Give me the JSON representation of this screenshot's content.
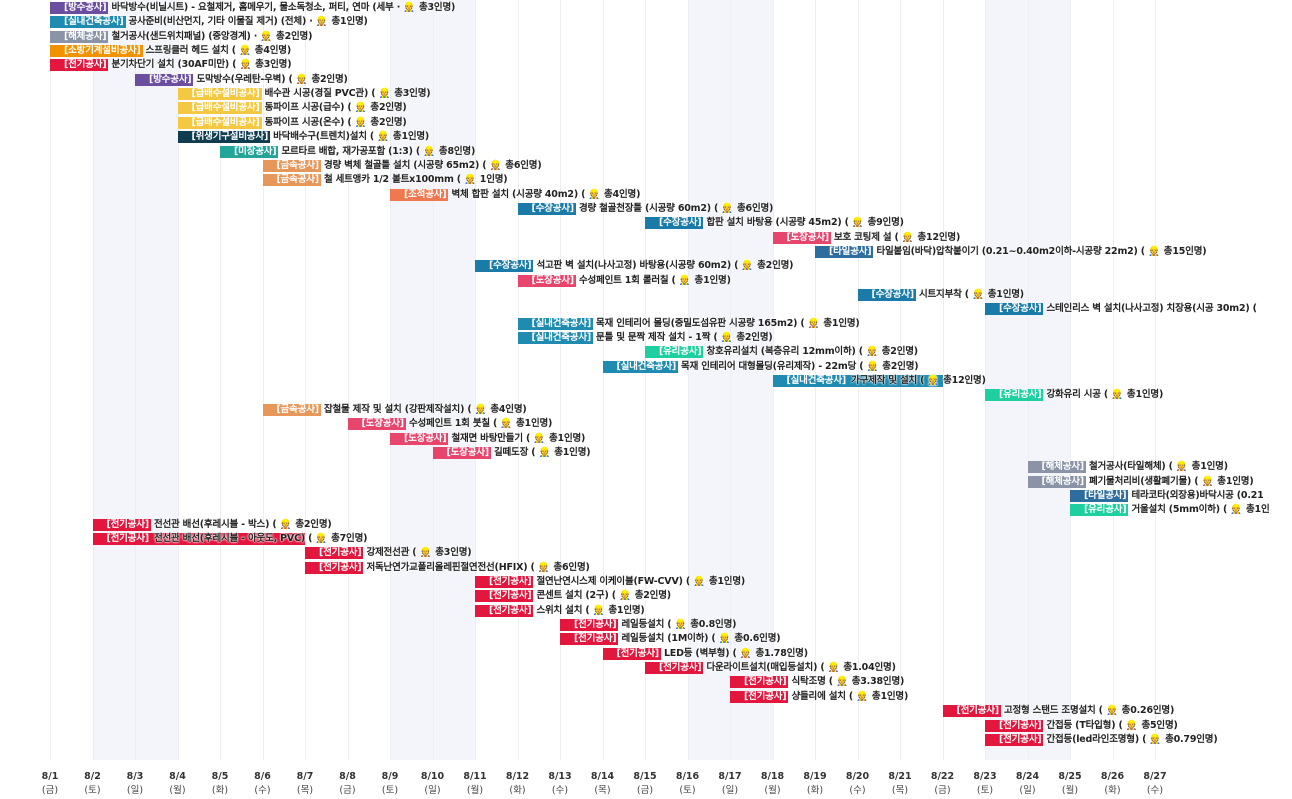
{
  "chart_data": {
    "type": "gantt",
    "x_axis": {
      "dates": [
        "8/1",
        "8/2",
        "8/3",
        "8/4",
        "8/5",
        "8/6",
        "8/7",
        "8/8",
        "8/9",
        "8/10",
        "8/11",
        "8/12",
        "8/13",
        "8/14",
        "8/15",
        "8/16",
        "8/17",
        "8/18",
        "8/19",
        "8/20",
        "8/21",
        "8/22",
        "8/23",
        "8/24",
        "8/25",
        "8/26",
        "8/27"
      ],
      "weekdays": [
        "(금)",
        "(토)",
        "(일)",
        "(월)",
        "(화)",
        "(수)",
        "(목)",
        "(금)",
        "(토)",
        "(일)",
        "(월)",
        "(화)",
        "(수)",
        "(목)",
        "(금)",
        "(토)",
        "(일)",
        "(월)",
        "(화)",
        "(수)",
        "(목)",
        "(금)",
        "(토)",
        "(일)",
        "(월)",
        "(화)",
        "(수)"
      ],
      "weekend_days": [
        1,
        2,
        8,
        9,
        15,
        16,
        22,
        23
      ]
    },
    "worker_icon": "worker-icon",
    "colors": {
      "방수공사": "#6b4ea0",
      "실내건축공사": "#1f8bb0",
      "해체공사": "#8a94a6",
      "소방기계설비공사": "#f39200",
      "전기공사": "#e3173e",
      "급배수설비공사": "#f5c842",
      "위생기구설비공사": "#0f3d4f",
      "미장공사": "#23a59a",
      "금속공사": "#e8975a",
      "조적공사": "#f07850",
      "수장공사": "#1b7ba8",
      "도장공사": "#e8456d",
      "타일공사": "#2e6e9e",
      "유리공사": "#1ecfa0"
    },
    "tasks": [
      {
        "cat": "방수공사",
        "desc": "바닥방수(비닐시트) - 요철제거, 홈메우기, 물소독청소, 퍼티, 연마 (세부 ·",
        "workers": "총3인명)",
        "start": 0,
        "dur": 0.3
      },
      {
        "cat": "실내건축공사",
        "desc": "공사준비(비산먼지, 기타 이물질 제거) (전체) ·",
        "workers": "총1인명)",
        "start": 0,
        "dur": 0.3
      },
      {
        "cat": "해체공사",
        "desc": "철거공사(샌드위치패널) (중앙경계) ·",
        "workers": "총2인명)",
        "start": 0,
        "dur": 0.3
      },
      {
        "cat": "소방기계설비공사",
        "desc": "스프링클러 헤드 설치 (",
        "workers": "총4인명)",
        "start": 0,
        "dur": 0.3
      },
      {
        "cat": "전기공사",
        "desc": "분기차단기 설치 (30AF미만) (",
        "workers": "총3인명)",
        "start": 0,
        "dur": 0.3
      },
      {
        "cat": "방수공사",
        "desc": "도막방수(우레탄-우벽) (",
        "workers": "총2인명)",
        "start": 2,
        "dur": 0.3
      },
      {
        "cat": "급배수설비공사",
        "desc": "배수관 시공(경질 PVC관) (",
        "workers": "총3인명)",
        "start": 3,
        "dur": 0.3
      },
      {
        "cat": "급배수설비공사",
        "desc": "동파이프 시공(급수) (",
        "workers": "총2인명)",
        "start": 3,
        "dur": 0.3
      },
      {
        "cat": "급배수설비공사",
        "desc": "동파이프 시공(온수) (",
        "workers": "총2인명)",
        "start": 3,
        "dur": 0.3
      },
      {
        "cat": "위생기구설비공사",
        "desc": "바닥배수구(트렌치)설치 (",
        "workers": "총1인명)",
        "start": 3,
        "dur": 0.3
      },
      {
        "cat": "미장공사",
        "desc": "모르타르 배합, 재가공포함 (1:3) (",
        "workers": "총8인명)",
        "start": 4,
        "dur": 0.3
      },
      {
        "cat": "금속공사",
        "desc": "경량 벽체 철골틀 설치 (시공량 65m2) (",
        "workers": "총6인명)",
        "start": 5,
        "dur": 0.3
      },
      {
        "cat": "금속공사",
        "desc": "철 세트앵카 1/2 볼트x100mm (",
        "workers": "1인명)",
        "start": 5,
        "dur": 0.3
      },
      {
        "cat": "조적공사",
        "desc": "벽체 합판 설치 (시공량 40m2) (",
        "workers": "총4인명)",
        "start": 8,
        "dur": 1
      },
      {
        "cat": "수장공사",
        "desc": "경량 철골천장틀 (시공량 60m2) (",
        "workers": "총6인명)",
        "start": 11,
        "dur": 0.3
      },
      {
        "cat": "수장공사",
        "desc": "합판 설치 바탕용 (시공량 45m2) (",
        "workers": "총9인명)",
        "start": 14,
        "dur": 0.3
      },
      {
        "cat": "도장공사",
        "desc": "보호 코팅제 설 (",
        "workers": "총12인명)",
        "start": 17,
        "dur": 0.3
      },
      {
        "cat": "타일공사",
        "desc": "타일붙임(바닥)압착붙이기 (0.21~0.40m2이하-시공량 22m2) (",
        "workers": "총15인명)",
        "start": 18,
        "dur": 0.3
      },
      {
        "cat": "수장공사",
        "desc": "석고판 벽 설치(나사고정) 바탕용(시공량 60m2) (",
        "workers": "총2인명)",
        "start": 10,
        "dur": 0.3
      },
      {
        "cat": "도장공사",
        "desc": "수성페인트 1회 롤러칠 (",
        "workers": "총1인명)",
        "start": 11,
        "dur": 0.3
      },
      {
        "cat": "수장공사",
        "desc": "시트지부착 (",
        "workers": "총1인명)",
        "start": 19,
        "dur": 0.3
      },
      {
        "cat": "수장공사",
        "desc": "스테인리스 벽 설치(나사고정) 치장용(시공 30m2) (",
        "workers": "",
        "start": 22,
        "dur": 0.3
      },
      {
        "cat": "실내건축공사",
        "desc": "목재 인테리어 몰딩(중밀도섬유판 시공량 165m2) (",
        "workers": "총1인명)",
        "start": 11,
        "dur": 0.3
      },
      {
        "cat": "실내건축공사",
        "desc": "문틀 및 문짝 제작 설치 - 1짝 (",
        "workers": "총2인명)",
        "start": 11,
        "dur": 0.3
      },
      {
        "cat": "유리공사",
        "desc": "창호유리설치 (복층유리 12mm이하) (",
        "workers": "총2인명)",
        "start": 14,
        "dur": 0.3
      },
      {
        "cat": "실내건축공사",
        "desc": "목재 인테리어 대형몰딩(유리제작) - 22m당 (",
        "workers": "총2인명)",
        "start": 13,
        "dur": 0.3
      },
      {
        "cat": "실내건축공사",
        "desc": "가구제작 및 설치 (",
        "workers": "총12인명)",
        "start": 17,
        "dur": 4
      },
      {
        "cat": "유리공사",
        "desc": "강화유리 시공 (",
        "workers": "총1인명)",
        "start": 22,
        "dur": 0.3
      },
      {
        "cat": "금속공사",
        "desc": "잡철물 제작 및 설치 (강판제작설치) (",
        "workers": "총4인명)",
        "start": 5,
        "dur": 0.3
      },
      {
        "cat": "도장공사",
        "desc": "수성페인트 1회 붓칠 (",
        "workers": "총1인명)",
        "start": 7,
        "dur": 0.3
      },
      {
        "cat": "도장공사",
        "desc": "철재면 바탕만들기 (",
        "workers": "총1인명)",
        "start": 8,
        "dur": 0.3
      },
      {
        "cat": "도장공사",
        "desc": "길떼도장 (",
        "workers": "총1인명)",
        "start": 9,
        "dur": 0.3
      },
      {
        "cat": "해체공사",
        "desc": "철거공사(타일해체) (",
        "workers": "총1인명)",
        "start": 23,
        "dur": 0.3
      },
      {
        "cat": "해체공사",
        "desc": "폐기물처리비(생활폐기물) (",
        "workers": "총1인명)",
        "start": 23,
        "dur": 0.3
      },
      {
        "cat": "타일공사",
        "desc": "테라코타(외장용)바닥시공 (0.21",
        "workers": "",
        "start": 24,
        "dur": 0.3
      },
      {
        "cat": "유리공사",
        "desc": "거울설치 (5mm이하) (",
        "workers": "총1인",
        "start": 24,
        "dur": 0.3
      },
      {
        "cat": "전기공사",
        "desc": "전선관 배선(후레시블 - 박스) (",
        "workers": "총2인명)",
        "start": 1,
        "dur": 0.3
      },
      {
        "cat": "전기공사",
        "desc": "전선관 배선(후레시블 - 아웃도, PVC) (",
        "workers": "총7인명)",
        "start": 1,
        "dur": 5
      },
      {
        "cat": "전기공사",
        "desc": "강제전선관 (",
        "workers": "총3인명)",
        "start": 6,
        "dur": 0.3
      },
      {
        "cat": "전기공사",
        "desc": "저독난연가교폴리올레핀절연전선(HFIX) (",
        "workers": "총6인명)",
        "start": 6,
        "dur": 0.3
      },
      {
        "cat": "전기공사",
        "desc": "절연난연시스제 이케이블(FW-CVV) (",
        "workers": "총1인명)",
        "start": 10,
        "dur": 0.3
      },
      {
        "cat": "전기공사",
        "desc": "콘센트 설치 (2구) (",
        "workers": "총2인명)",
        "start": 10,
        "dur": 0.3
      },
      {
        "cat": "전기공사",
        "desc": "스위치 설치 (",
        "workers": "총1인명)",
        "start": 10,
        "dur": 0.3
      },
      {
        "cat": "전기공사",
        "desc": "레일등설치 (",
        "workers": "총0.8인명)",
        "start": 12,
        "dur": 0.3
      },
      {
        "cat": "전기공사",
        "desc": "레일등설치 (1M이하) (",
        "workers": "총0.6인명)",
        "start": 12,
        "dur": 0.3
      },
      {
        "cat": "전기공사",
        "desc": "LED등 (벽부형) (",
        "workers": "총1.78인명)",
        "start": 13,
        "dur": 0.3
      },
      {
        "cat": "전기공사",
        "desc": "다운라이트설치(매입등설치) (",
        "workers": "총1.04인명)",
        "start": 14,
        "dur": 0.3
      },
      {
        "cat": "전기공사",
        "desc": "식탁조명 (",
        "workers": "총3.38인명)",
        "start": 16,
        "dur": 0.3
      },
      {
        "cat": "전기공사",
        "desc": "샹들리에 설치 (",
        "workers": "총1인명)",
        "start": 16,
        "dur": 0.3
      },
      {
        "cat": "전기공사",
        "desc": "고정형 스탠드 조명설치 (",
        "workers": "총0.26인명)",
        "start": 21,
        "dur": 0.3
      },
      {
        "cat": "전기공사",
        "desc": "간접등 (T타입형) (",
        "workers": "총5인명)",
        "start": 22,
        "dur": 0.3
      },
      {
        "cat": "전기공사",
        "desc": "간접등(led라인조명형) (",
        "workers": "총0.79인명)",
        "start": 22,
        "dur": 0.3
      }
    ]
  }
}
